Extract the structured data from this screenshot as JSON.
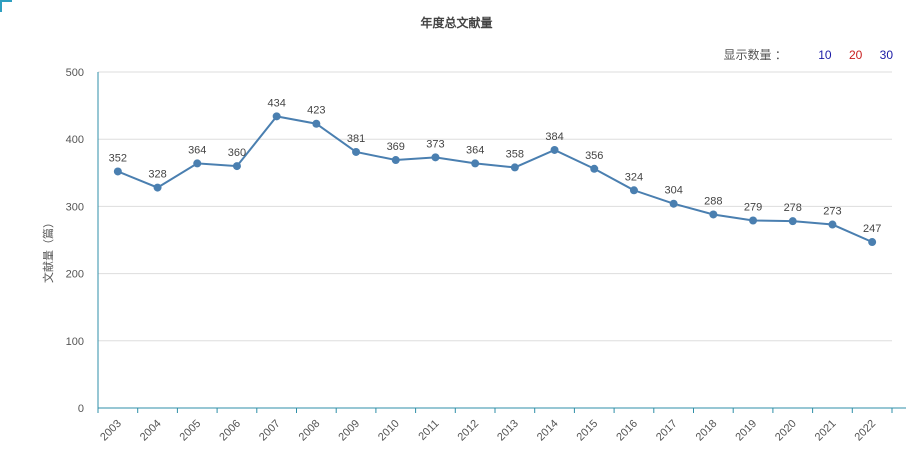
{
  "header": {
    "title": "年度总文献量"
  },
  "display_count": {
    "label": "显示数量 ：",
    "options": [
      {
        "label": "10",
        "color": "#1a1aa6"
      },
      {
        "label": "20",
        "color": "#c81e1e"
      },
      {
        "label": "30",
        "color": "#1a1aa6"
      }
    ]
  },
  "colors": {
    "line": "#4a7fb0",
    "axis": "#2f8fa8",
    "grid": "#dddddd",
    "corner": "#2f9fc0"
  },
  "chart_data": {
    "type": "line",
    "title": "年度总文献量",
    "xlabel": "",
    "ylabel": "文献量（篇）",
    "ylim": [
      0,
      500
    ],
    "yticks": [
      0,
      100,
      200,
      300,
      400,
      500
    ],
    "grid": true,
    "categories": [
      "2003",
      "2004",
      "2005",
      "2006",
      "2007",
      "2008",
      "2009",
      "2010",
      "2011",
      "2012",
      "2013",
      "2014",
      "2015",
      "2016",
      "2017",
      "2018",
      "2019",
      "2020",
      "2021",
      "2022"
    ],
    "values": [
      352,
      328,
      364,
      360,
      434,
      423,
      381,
      369,
      373,
      364,
      358,
      384,
      356,
      324,
      304,
      288,
      279,
      278,
      273,
      247
    ]
  }
}
